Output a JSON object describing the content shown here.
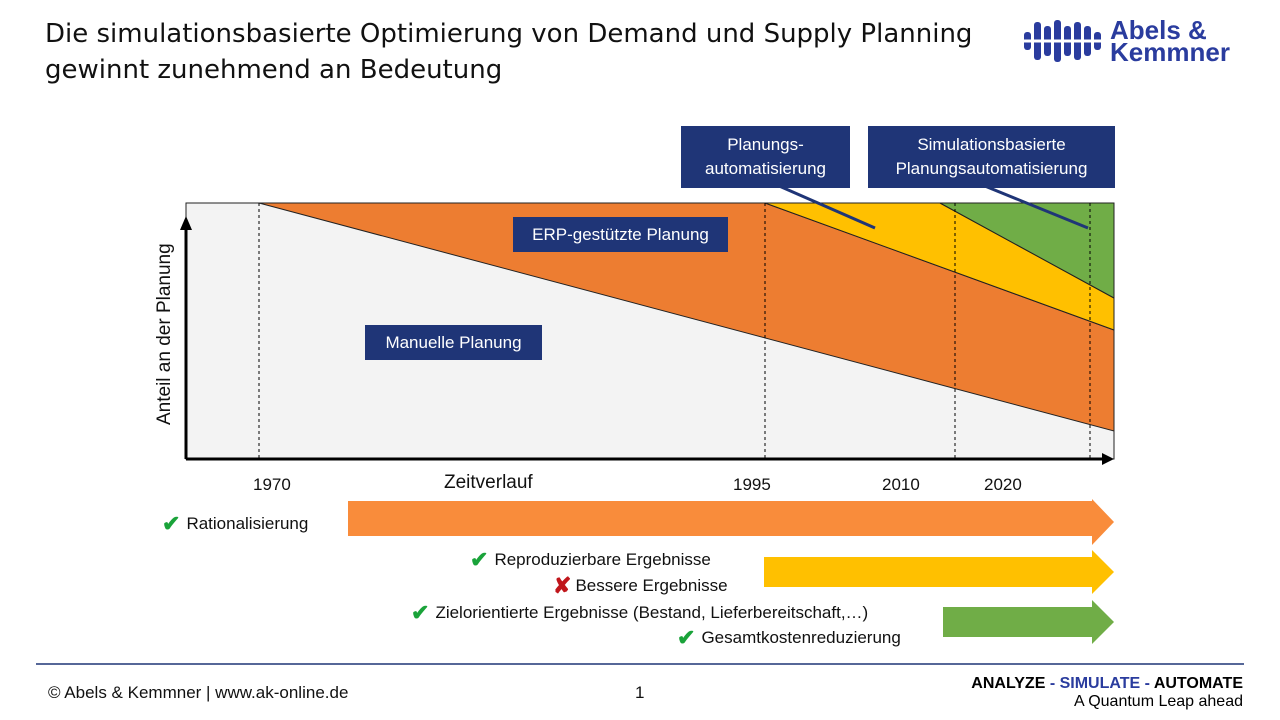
{
  "title": "Die simulationsbasierte Optimierung von Demand und Supply Planning gewinnt zunehmend an Bedeutung",
  "logo": {
    "line1": "Abels &",
    "line2": "Kemmner"
  },
  "callouts": {
    "planungs": "Planungs- automatisierung",
    "sim": "Simulationsbasierte Planungsautomatisierung"
  },
  "areas": {
    "erp": "ERP-gestützte Planung",
    "manual": "Manuelle Planung"
  },
  "axis": {
    "y": "Anteil an der Planung",
    "x": "Zeitverlauf"
  },
  "years": [
    "1970",
    "1995",
    "2010",
    "2020"
  ],
  "benefits": [
    {
      "icon": "check",
      "text": "Rationalisierung"
    },
    {
      "icon": "check",
      "text": "Reproduzierbare Ergebnisse"
    },
    {
      "icon": "cross",
      "text": "Bessere Ergebnisse"
    },
    {
      "icon": "check",
      "text": "Zielorientierte Ergebnisse (Bestand, Lieferbereitschaft,…)"
    },
    {
      "icon": "check",
      "text": "Gesamtkostenreduzierung"
    }
  ],
  "icons": {
    "check": "✔",
    "cross": "✘"
  },
  "colors": {
    "orange": "#ed7d31",
    "arrow_orange": "#f98c3b",
    "yellow": "#ffc000",
    "green": "#70ad47",
    "navy": "#1f3577",
    "gray": "#f3f3f3"
  },
  "footer": {
    "copyright": "© Abels & Kemmner | www.ak-online.de",
    "page": "1",
    "tag_analyze": "ANALYZE",
    "tag_sep1": " - ",
    "tag_simulate": "SIMULATE",
    "tag_sep2": " - ",
    "tag_automate": "AUTOMATE",
    "tagline": "A Quantum Leap ahead"
  }
}
